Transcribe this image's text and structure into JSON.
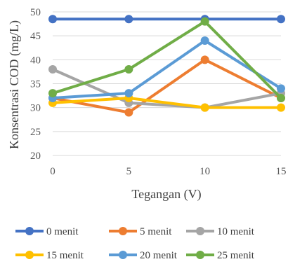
{
  "chart_data": {
    "type": "line",
    "x": [
      0,
      5,
      10,
      15
    ],
    "xlabel": "Tegangan (V)",
    "ylabel": "Konsentrasi COD (mg/L)",
    "ylim": [
      20,
      50
    ],
    "yticks": [
      20,
      25,
      30,
      35,
      40,
      45,
      50
    ],
    "xticks": [
      0,
      5,
      10,
      15
    ],
    "grid": "horizontal",
    "legend_position": "bottom",
    "series": [
      {
        "name": "0 menit",
        "color": "#4472C4",
        "values": [
          48.5,
          48.5,
          48.5,
          48.5
        ]
      },
      {
        "name": "5 menit",
        "color": "#ED7D31",
        "values": [
          32,
          29,
          40,
          32
        ]
      },
      {
        "name": "10 menit",
        "color": "#A5A5A5",
        "values": [
          38,
          31,
          30,
          33
        ]
      },
      {
        "name": "15 menit",
        "color": "#FFC000",
        "values": [
          31,
          32,
          30,
          30
        ]
      },
      {
        "name": "20 menit",
        "color": "#5B9BD5",
        "values": [
          32,
          33,
          44,
          34
        ]
      },
      {
        "name": "25 menit",
        "color": "#70AD47",
        "values": [
          33,
          38,
          48,
          32
        ]
      }
    ]
  }
}
